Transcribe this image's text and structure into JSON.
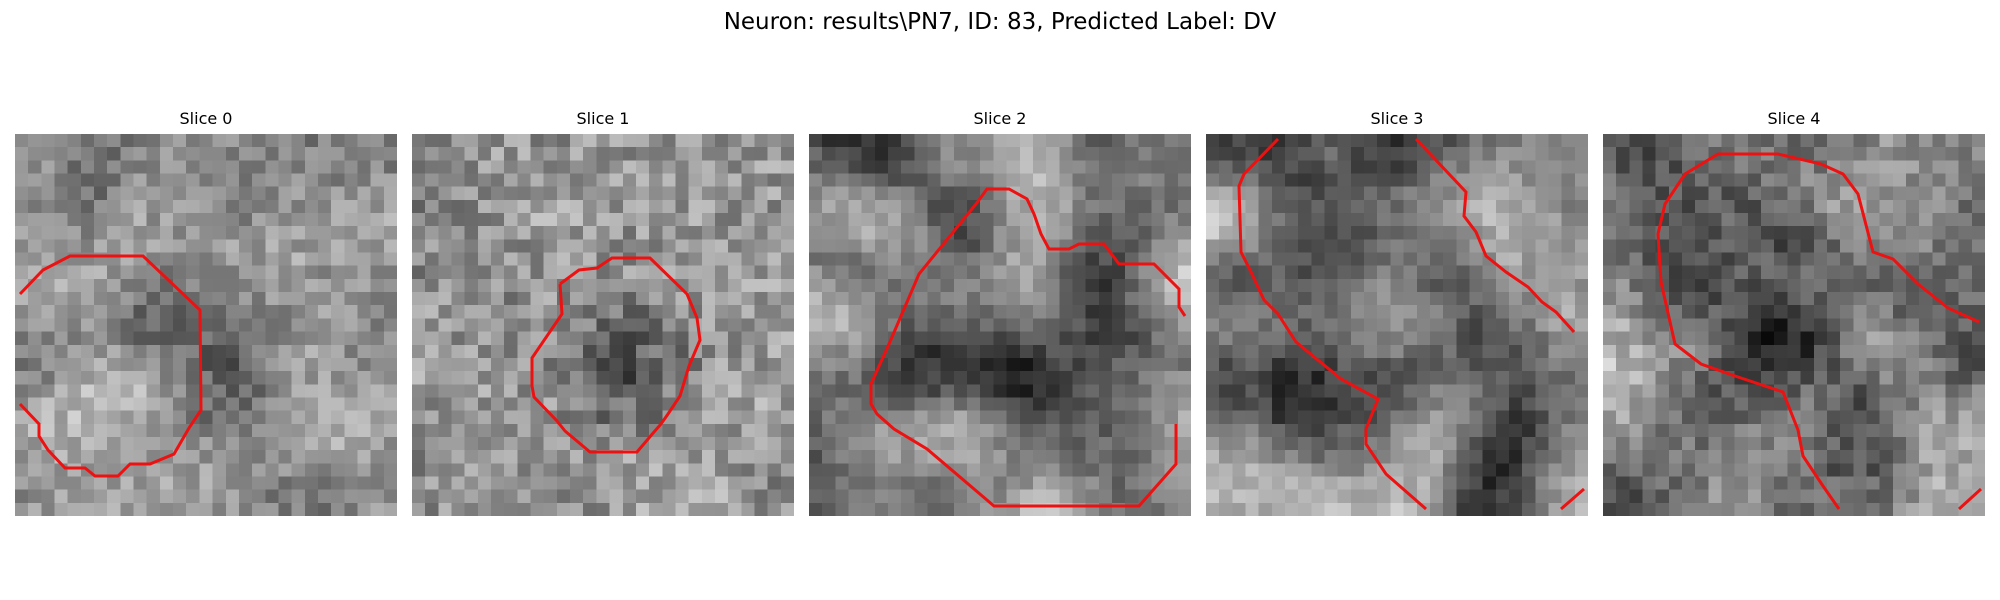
{
  "figure": {
    "suptitle": "Neuron: results\\PN7, ID: 83, Predicted Label: DV",
    "contour_color": "#ee1111",
    "panels": [
      {
        "title": "Slice 0"
      },
      {
        "title": "Slice 1"
      },
      {
        "title": "Slice 2"
      },
      {
        "title": "Slice 3"
      },
      {
        "title": "Slice 4"
      }
    ]
  }
}
